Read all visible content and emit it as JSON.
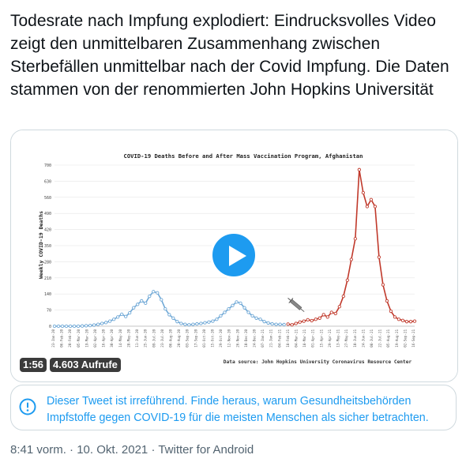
{
  "tweet": {
    "text": "Todesrate nach Impfung explodiert: Eindrucksvolles Video zeigt den unmittelbaren Zusammenhang zwischen Sterbefällen unmittelbar nach der Covid Impfung. Die Daten stammen von der renommierten John Hopkins Universität"
  },
  "video": {
    "duration": "1:56",
    "views": "4.603 Aufrufe"
  },
  "chart_data": {
    "type": "line",
    "title": "COVID-19 Deaths Before and After Mass Vaccination Program, Afghanistan",
    "ylabel": "Weekly COVID-19 Deaths",
    "xlabel": "",
    "source_note": "Data source: John Hopkins University Coronavirus Resource Center",
    "ylim": [
      0,
      700
    ],
    "yticks": [
      0,
      70,
      140,
      210,
      280,
      350,
      420,
      490,
      560,
      630,
      700
    ],
    "x_tick_labels": [
      "23-Jan-20",
      "06-Feb-20",
      "20-Feb-20",
      "05-Mar-20",
      "19-Mar-20",
      "02-Apr-20",
      "16-Apr-20",
      "30-Apr-20",
      "14-May-20",
      "28-May-20",
      "11-Jun-20",
      "25-Jun-20",
      "09-Jul-20",
      "23-Jul-20",
      "06-Aug-20",
      "20-Aug-20",
      "03-Sep-20",
      "17-Sep-20",
      "01-Oct-20",
      "15-Oct-20",
      "29-Oct-20",
      "12-Nov-20",
      "26-Nov-20",
      "10-Dec-20",
      "24-Dec-20",
      "07-Jan-21",
      "21-Jan-21",
      "04-Feb-21",
      "18-Feb-21",
      "04-Mar-21",
      "18-Mar-21",
      "01-Apr-21",
      "15-Apr-21",
      "29-Apr-21",
      "13-May-21",
      "27-May-21",
      "10-Jun-21",
      "24-Jun-21",
      "08-Jul-21",
      "22-Jul-21",
      "05-Aug-21",
      "19-Aug-21",
      "02-Sep-21",
      "16-Sep-21"
    ],
    "series": [
      {
        "name": "before vaccination",
        "color": "#6fa8d6",
        "values": [
          0,
          0,
          0,
          0,
          0,
          0,
          0,
          1,
          2,
          3,
          5,
          8,
          12,
          16,
          22,
          30,
          40,
          52,
          42,
          58,
          80,
          95,
          110,
          100,
          130,
          150,
          145,
          115,
          75,
          50,
          35,
          20,
          12,
          8,
          6,
          8,
          10,
          12,
          15,
          18,
          22,
          30,
          45,
          60,
          75,
          90,
          105,
          100,
          80,
          60,
          45,
          35,
          30,
          20,
          14,
          10,
          8,
          8,
          7
        ]
      },
      {
        "name": "after vaccination",
        "color": "#c0392b",
        "values": [
          9,
          6,
          12,
          18,
          22,
          28,
          24,
          30,
          35,
          50,
          40,
          60,
          55,
          85,
          130,
          200,
          290,
          380,
          680,
          580,
          520,
          550,
          520,
          300,
          180,
          110,
          65,
          40,
          30,
          25,
          20,
          20,
          22
        ]
      }
    ]
  },
  "notice": {
    "text": "Dieser Tweet ist irreführend. Finde heraus, warum Gesundheitsbehörden Impfstoffe gegen COVID-19 für die meisten Menschen als sicher betrachten.",
    "icon": "info-circle-icon",
    "color": "#1d9bf0"
  },
  "meta": {
    "time": "8:41 vorm.",
    "separator": " · ",
    "date": "10. Okt. 2021",
    "source": "Twitter for Android"
  }
}
